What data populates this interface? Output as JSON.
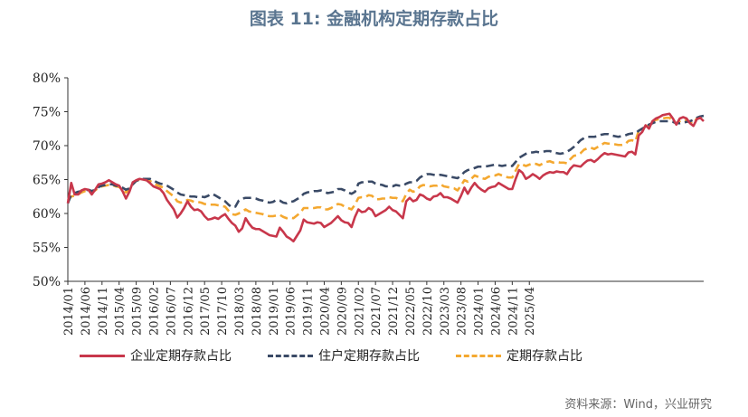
{
  "title": "图表 11: 金融机构定期存款占比",
  "source": "资料来源：Wind，兴业研究",
  "colors": {
    "corporate": "#c8374b",
    "household": "#3a4a66",
    "total": "#f4a830",
    "axis": "#333333"
  },
  "chart_data": {
    "type": "line",
    "title": "图表 11: 金融机构定期存款占比",
    "xlabel": "",
    "ylabel": "",
    "ylim": [
      50,
      80
    ],
    "yticks": [
      "50%",
      "55%",
      "60%",
      "65%",
      "70%",
      "75%",
      "80%"
    ],
    "xticks": [
      "2014/01",
      "2014/06",
      "2014/11",
      "2015/04",
      "2015/09",
      "2016/02",
      "2016/07",
      "2016/12",
      "2017/05",
      "2017/10",
      "2018/03",
      "2018/08",
      "2019/01",
      "2019/06",
      "2019/11",
      "2020/04",
      "2020/09",
      "2021/02",
      "2021/07",
      "2021/12",
      "2022/05",
      "2022/10",
      "2023/03",
      "2023/08",
      "2024/01",
      "2024/06",
      "2024/11",
      "2025/04"
    ],
    "x_start": "2014-01",
    "grid": false,
    "legend_position": "bottom",
    "series": [
      {
        "name": "企业定期存款占比",
        "style": "solid",
        "values": [
          61.5,
          64.5,
          62.8,
          62.8,
          63.4,
          63.6,
          63.5,
          62.8,
          63.5,
          64.3,
          64.4,
          64.6,
          64.9,
          64.6,
          64.3,
          64.1,
          63.3,
          62.2,
          63.2,
          64.6,
          64.9,
          65.1,
          65.0,
          64.9,
          64.5,
          64.0,
          63.8,
          63.6,
          63.0,
          62.0,
          61.3,
          60.6,
          59.4,
          60.0,
          60.8,
          61.8,
          61.0,
          60.5,
          60.6,
          60.3,
          59.6,
          59.1,
          59.2,
          59.4,
          59.2,
          59.6,
          59.9,
          59.2,
          58.6,
          58.2,
          57.3,
          57.8,
          59.3,
          58.5,
          57.9,
          57.7,
          57.7,
          57.4,
          57.1,
          56.8,
          56.7,
          56.6,
          57.9,
          57.3,
          56.6,
          56.3,
          55.9,
          56.7,
          57.5,
          59.1,
          58.7,
          58.6,
          58.5,
          58.7,
          58.6,
          58.0,
          58.3,
          58.6,
          59.1,
          59.6,
          59.0,
          58.7,
          58.6,
          58.0,
          59.5,
          60.6,
          60.2,
          60.3,
          60.8,
          60.5,
          59.6,
          59.9,
          60.2,
          60.5,
          61.0,
          60.5,
          60.3,
          59.8,
          59.3,
          61.8,
          62.3,
          61.8,
          62.0,
          62.8,
          62.6,
          62.2,
          62.0,
          62.5,
          62.6,
          63.0,
          62.4,
          62.4,
          62.2,
          61.9,
          61.6,
          62.6,
          63.8,
          62.9,
          63.8,
          64.5,
          63.9,
          63.5,
          63.2,
          63.7,
          63.9,
          64.0,
          64.5,
          64.2,
          63.9,
          63.6,
          63.6,
          65.1,
          66.4,
          66.0,
          65.1,
          65.4,
          65.8,
          65.5,
          65.1,
          65.6,
          65.9,
          66.1,
          66.0,
          66.2,
          66.1,
          66.1,
          65.8,
          66.6,
          67.1,
          67.0,
          66.9,
          67.4,
          67.8,
          67.9,
          67.6,
          68.0,
          68.5,
          68.9,
          68.7,
          68.8,
          68.7,
          68.6,
          68.5,
          68.4,
          69.0,
          69.1,
          68.7,
          71.5,
          72.0,
          73.0,
          72.5,
          73.6,
          74.0,
          74.2,
          74.5,
          74.6,
          74.7,
          74.0,
          73.1,
          74.0,
          74.2,
          74.0,
          73.3,
          72.9,
          73.9,
          74.1,
          73.6
        ]
      },
      {
        "name": "住户定期存款占比",
        "style": "dashed",
        "values": [
          61.5,
          62.8,
          63.0,
          63.2,
          63.3,
          63.4,
          63.5,
          63.3,
          63.5,
          63.9,
          64.1,
          64.2,
          64.3,
          64.3,
          64.1,
          64.0,
          63.8,
          63.5,
          63.7,
          64.3,
          64.8,
          65.0,
          65.1,
          65.1,
          65.1,
          64.9,
          64.6,
          64.4,
          64.3,
          64.1,
          63.8,
          63.5,
          63.1,
          62.8,
          62.7,
          62.6,
          62.5,
          62.5,
          62.4,
          62.5,
          62.4,
          62.6,
          62.9,
          62.7,
          62.4,
          62.1,
          61.8,
          61.3,
          60.9,
          61.0,
          61.9,
          62.2,
          62.3,
          62.3,
          62.3,
          62.2,
          62.0,
          61.9,
          61.7,
          61.6,
          61.7,
          62.0,
          61.9,
          61.6,
          61.5,
          61.7,
          61.8,
          62.1,
          62.4,
          62.9,
          63.1,
          63.2,
          63.3,
          63.3,
          63.4,
          63.2,
          63.0,
          63.1,
          63.2,
          63.6,
          63.6,
          63.4,
          63.1,
          62.9,
          63.2,
          64.4,
          64.6,
          64.6,
          64.7,
          64.7,
          64.4,
          64.3,
          64.2,
          64.0,
          64.0,
          64.0,
          64.2,
          64.1,
          64.1,
          64.4,
          64.6,
          64.6,
          64.8,
          65.3,
          65.6,
          65.8,
          65.8,
          65.7,
          65.6,
          65.7,
          65.6,
          65.5,
          65.4,
          65.3,
          65.2,
          65.6,
          66.1,
          66.4,
          66.5,
          66.7,
          66.9,
          66.9,
          66.9,
          67.0,
          67.1,
          67.2,
          67.1,
          67.0,
          67.1,
          67.0,
          67.0,
          67.6,
          68.2,
          68.5,
          68.8,
          69.0,
          69.0,
          69.1,
          69.0,
          69.1,
          69.2,
          69.2,
          69.0,
          68.9,
          68.8,
          68.9,
          69.1,
          69.4,
          69.8,
          70.3,
          70.8,
          71.1,
          71.3,
          71.3,
          71.3,
          71.4,
          71.6,
          71.7,
          71.7,
          71.5,
          71.4,
          71.3,
          71.4,
          71.5,
          71.7,
          71.8,
          71.8,
          72.2,
          72.5,
          72.8,
          73.1,
          73.3,
          73.5,
          73.6,
          73.6,
          73.6,
          73.6,
          73.5,
          73.3,
          73.3,
          73.4,
          73.5,
          73.6,
          73.8,
          74.1,
          74.3,
          74.4
        ]
      },
      {
        "name": "定期存款占比",
        "style": "dashed",
        "values": [
          61.9,
          62.5,
          62.6,
          62.8,
          63.1,
          63.3,
          63.4,
          63.2,
          63.4,
          63.8,
          64.0,
          64.1,
          64.2,
          64.2,
          64.0,
          63.9,
          63.5,
          63.1,
          63.5,
          64.3,
          64.8,
          65.0,
          65.0,
          64.9,
          64.8,
          64.5,
          64.2,
          64.0,
          63.8,
          63.3,
          62.9,
          62.5,
          61.8,
          61.6,
          61.7,
          62.0,
          61.9,
          61.7,
          61.7,
          61.6,
          61.4,
          61.3,
          61.3,
          61.3,
          61.2,
          61.1,
          61.0,
          60.4,
          59.9,
          59.8,
          60.0,
          60.3,
          60.6,
          60.3,
          60.2,
          60.1,
          60.0,
          59.9,
          59.7,
          59.6,
          59.6,
          59.7,
          59.8,
          59.5,
          59.3,
          59.4,
          59.3,
          59.7,
          60.1,
          60.8,
          60.8,
          60.8,
          60.8,
          60.9,
          60.9,
          60.6,
          60.6,
          60.8,
          61.1,
          61.4,
          61.3,
          61.0,
          60.8,
          60.6,
          61.3,
          62.3,
          62.4,
          62.4,
          62.7,
          62.6,
          62.1,
          62.1,
          62.2,
          62.2,
          62.4,
          62.3,
          62.3,
          62.0,
          61.8,
          62.9,
          63.5,
          63.2,
          63.4,
          64.0,
          64.2,
          64.1,
          64.0,
          64.1,
          64.1,
          64.3,
          64.0,
          63.9,
          63.8,
          63.7,
          63.4,
          64.1,
          64.9,
          64.7,
          65.1,
          65.6,
          65.4,
          65.2,
          65.1,
          65.4,
          65.6,
          65.6,
          65.8,
          65.6,
          65.4,
          65.3,
          65.3,
          66.3,
          67.3,
          67.2,
          67.0,
          67.2,
          67.4,
          67.3,
          67.1,
          67.4,
          67.6,
          67.7,
          67.5,
          67.6,
          67.5,
          67.5,
          67.4,
          68.0,
          68.5,
          68.6,
          68.9,
          69.4,
          69.6,
          69.7,
          69.5,
          69.8,
          70.1,
          70.4,
          70.3,
          70.3,
          70.2,
          70.1,
          70.1,
          70.2,
          70.7,
          70.8,
          70.6,
          72.2,
          72.3,
          72.9,
          72.9,
          73.5,
          73.8,
          73.9,
          74.0,
          74.1,
          74.1,
          73.7,
          73.2,
          73.6,
          73.8,
          73.7,
          73.4,
          73.2,
          74.0,
          74.2,
          74.0
        ]
      }
    ]
  }
}
